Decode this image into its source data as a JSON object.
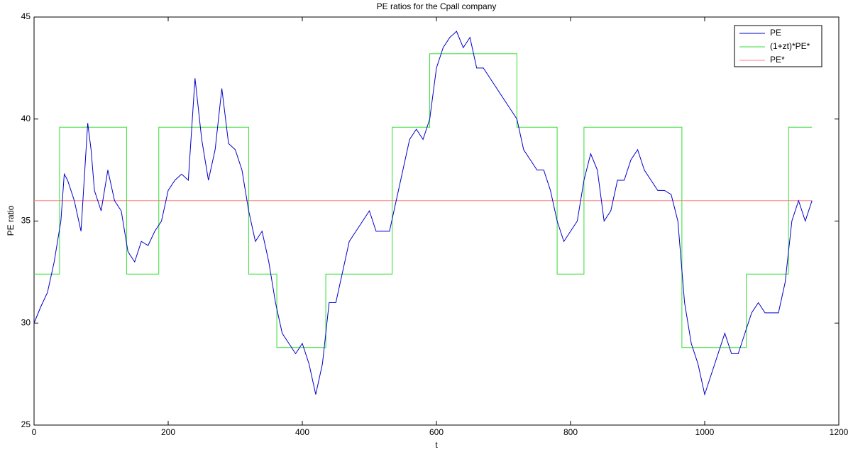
{
  "chart_data": {
    "type": "line",
    "title": "PE ratios for the Cpall company",
    "x_label": "t",
    "y_label": "PE ratio",
    "xlim": [
      0,
      1200
    ],
    "xticks": [
      0,
      200,
      400,
      600,
      800,
      1000,
      1200
    ],
    "ylim": [
      25,
      45
    ],
    "yticks": [
      25,
      30,
      35,
      40,
      45
    ],
    "legend": "top-right",
    "series": [
      {
        "name": "PE",
        "color": "#0000cc",
        "x": [
          0,
          10,
          20,
          30,
          40,
          45,
          50,
          60,
          70,
          80,
          85,
          90,
          100,
          110,
          120,
          130,
          140,
          150,
          160,
          170,
          180,
          190,
          200,
          210,
          220,
          230,
          240,
          250,
          260,
          270,
          280,
          290,
          300,
          310,
          320,
          330,
          340,
          350,
          360,
          370,
          380,
          390,
          400,
          410,
          420,
          430,
          440,
          450,
          460,
          470,
          480,
          490,
          500,
          510,
          520,
          530,
          540,
          550,
          560,
          570,
          580,
          590,
          600,
          610,
          620,
          630,
          640,
          650,
          660,
          670,
          680,
          690,
          700,
          710,
          720,
          730,
          740,
          750,
          760,
          770,
          780,
          790,
          800,
          810,
          820,
          830,
          840,
          850,
          860,
          870,
          880,
          890,
          900,
          910,
          920,
          930,
          940,
          950,
          960,
          970,
          980,
          990,
          1000,
          1010,
          1020,
          1030,
          1040,
          1050,
          1060,
          1070,
          1080,
          1090,
          1100,
          1110,
          1120,
          1130,
          1140,
          1150,
          1160
        ],
        "values": [
          30,
          30.8,
          31.5,
          33,
          35,
          37.3,
          37,
          36,
          34.5,
          39.8,
          38.5,
          36.5,
          35.5,
          37.5,
          36,
          35.5,
          33.5,
          33,
          34,
          33.8,
          34.5,
          35,
          36.5,
          37,
          37.3,
          37,
          42,
          39,
          37,
          38.5,
          41.5,
          38.8,
          38.5,
          37.5,
          35.5,
          34,
          34.5,
          33,
          31,
          29.5,
          29,
          28.5,
          29,
          28,
          26.5,
          28,
          31,
          31,
          32.5,
          34,
          34.5,
          35,
          35.5,
          34.5,
          34.5,
          34.5,
          36,
          37.5,
          39,
          39.5,
          39,
          40,
          42.5,
          43.5,
          44,
          44.3,
          43.5,
          44,
          42.5,
          42.5,
          42,
          41.5,
          41,
          40.5,
          40,
          38.5,
          38,
          37.5,
          37.5,
          36.5,
          35,
          34,
          34.5,
          35,
          37,
          38.3,
          37.5,
          35,
          35.5,
          37,
          37,
          38,
          38.5,
          37.5,
          37,
          36.5,
          36.5,
          36.3,
          35,
          31,
          29,
          28,
          26.5,
          27.5,
          28.5,
          29.5,
          28.5,
          28.5,
          29.5,
          30.5,
          31,
          30.5,
          30.5,
          30.5,
          32,
          35,
          36,
          35,
          36
        ]
      },
      {
        "name": "(1+zt)*PE*",
        "color": "#33dd33",
        "x": [
          0,
          38,
          38,
          138,
          138,
          186,
          186,
          320,
          320,
          362,
          362,
          435,
          435,
          534,
          534,
          590,
          590,
          720,
          720,
          780,
          780,
          820,
          820,
          966,
          966,
          1062,
          1062,
          1125,
          1125,
          1160
        ],
        "values": [
          32.4,
          32.4,
          39.6,
          39.6,
          32.4,
          32.4,
          39.6,
          39.6,
          32.4,
          32.4,
          28.8,
          28.8,
          32.4,
          32.4,
          39.6,
          39.6,
          43.2,
          43.2,
          39.6,
          39.6,
          32.4,
          32.4,
          39.6,
          39.6,
          28.8,
          28.8,
          32.4,
          32.4,
          39.6,
          39.6
        ]
      },
      {
        "name": "PE*",
        "color": "#ff8080",
        "x": [
          0,
          1160
        ],
        "values": [
          36,
          36
        ]
      }
    ]
  }
}
